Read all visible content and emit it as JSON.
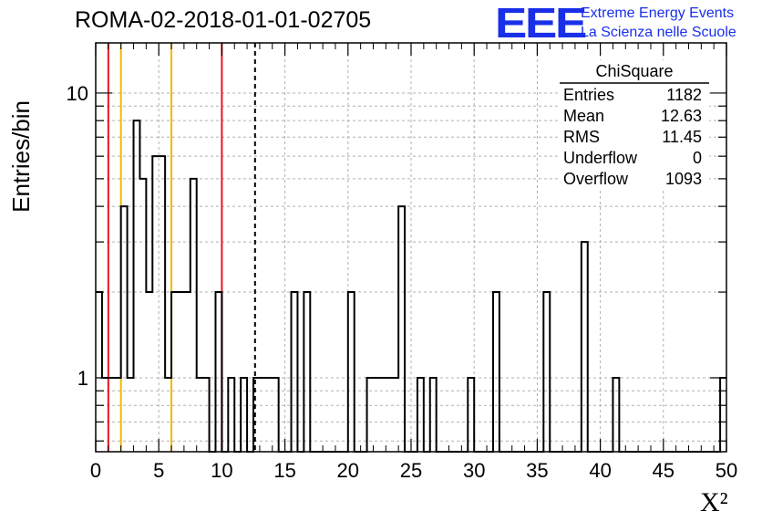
{
  "header": {
    "title": "ROMA-02-2018-01-01-02705",
    "logo_mark": "EEE",
    "logo_line1": "Extreme Energy Events",
    "logo_line2": "La Scienza nelle Scuole"
  },
  "colors": {
    "histogram": "#000000",
    "logo_blue": "#1a2fe8",
    "red_line": "#e8141e",
    "orange_line": "#f5b800",
    "grid": "#b0b0b0"
  },
  "stats_box": {
    "title": "ChiSquare",
    "rows": [
      {
        "label": "Entries",
        "value": "1182"
      },
      {
        "label": "Mean",
        "value": "12.63"
      },
      {
        "label": "RMS",
        "value": "11.45"
      },
      {
        "label": "Underflow",
        "value": "0"
      },
      {
        "label": "Overflow",
        "value": "1093"
      }
    ]
  },
  "chart_data": {
    "type": "bar",
    "style": "step-histogram",
    "xlabel": "X²",
    "ylabel": "Entries/bin",
    "xlim": [
      0,
      50
    ],
    "ylim": [
      0.55,
      15
    ],
    "yscale": "log",
    "grid": true,
    "bin_width": 0.5,
    "x_ticks": [
      "0",
      "5",
      "10",
      "15",
      "20",
      "25",
      "30",
      "35",
      "40",
      "45",
      "50"
    ],
    "y_ticks": [
      "1",
      "10"
    ],
    "bins": [
      {
        "x": 0.0,
        "y": 2
      },
      {
        "x": 0.5,
        "y": 1
      },
      {
        "x": 1.0,
        "y": 1
      },
      {
        "x": 1.5,
        "y": 1
      },
      {
        "x": 2.0,
        "y": 4
      },
      {
        "x": 2.5,
        "y": 1
      },
      {
        "x": 3.0,
        "y": 8
      },
      {
        "x": 3.5,
        "y": 5
      },
      {
        "x": 4.0,
        "y": 2
      },
      {
        "x": 4.5,
        "y": 6
      },
      {
        "x": 5.0,
        "y": 6
      },
      {
        "x": 5.5,
        "y": 1
      },
      {
        "x": 6.0,
        "y": 2
      },
      {
        "x": 6.5,
        "y": 2
      },
      {
        "x": 7.0,
        "y": 2
      },
      {
        "x": 7.5,
        "y": 5
      },
      {
        "x": 8.0,
        "y": 1
      },
      {
        "x": 8.5,
        "y": 1
      },
      {
        "x": 9.5,
        "y": 2
      },
      {
        "x": 10.5,
        "y": 1
      },
      {
        "x": 11.5,
        "y": 1
      },
      {
        "x": 12.5,
        "y": 1
      },
      {
        "x": 13.0,
        "y": 1
      },
      {
        "x": 13.5,
        "y": 1
      },
      {
        "x": 14.0,
        "y": 1
      },
      {
        "x": 15.5,
        "y": 2
      },
      {
        "x": 16.5,
        "y": 2
      },
      {
        "x": 20.0,
        "y": 2
      },
      {
        "x": 21.5,
        "y": 1
      },
      {
        "x": 22.0,
        "y": 1
      },
      {
        "x": 22.5,
        "y": 1
      },
      {
        "x": 23.0,
        "y": 1
      },
      {
        "x": 23.5,
        "y": 1
      },
      {
        "x": 24.0,
        "y": 4
      },
      {
        "x": 25.5,
        "y": 1
      },
      {
        "x": 26.5,
        "y": 1
      },
      {
        "x": 29.5,
        "y": 1
      },
      {
        "x": 31.5,
        "y": 2
      },
      {
        "x": 35.5,
        "y": 2
      },
      {
        "x": 38.5,
        "y": 3
      },
      {
        "x": 41.0,
        "y": 1
      },
      {
        "x": 49.5,
        "y": 1
      }
    ],
    "vertical_lines": [
      {
        "x": 1,
        "color": "#e8141e",
        "style": "solid"
      },
      {
        "x": 2,
        "color": "#f5b800",
        "style": "solid"
      },
      {
        "x": 6,
        "color": "#f5b800",
        "style": "solid"
      },
      {
        "x": 10,
        "color": "#e8141e",
        "style": "solid"
      },
      {
        "x": 12.63,
        "color": "#000000",
        "style": "dashed"
      }
    ]
  }
}
